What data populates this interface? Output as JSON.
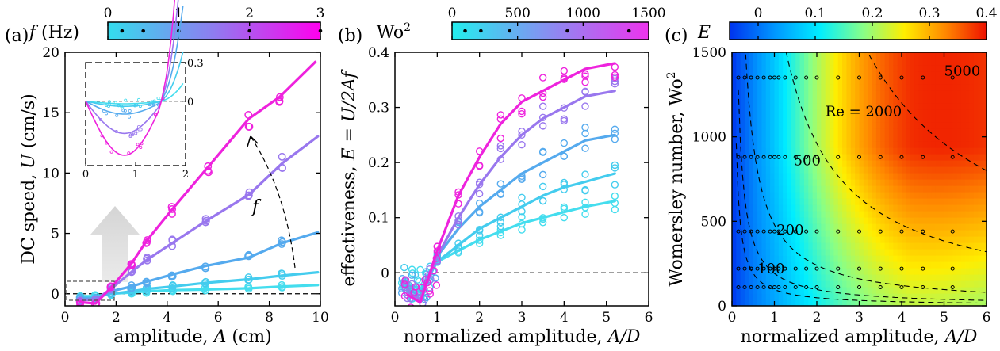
{
  "chart_data": [
    {
      "panel_label": "(a)",
      "type": "scatter",
      "xlabel_main": "amplitude, ",
      "xlabel_var": "A",
      "xlabel_unit": " (cm)",
      "ylabel_main": "DC speed, ",
      "ylabel_var": "U",
      "ylabel_unit": " (cm/s)",
      "xlim": [
        0,
        10
      ],
      "ylim": [
        -1,
        20
      ],
      "xticks": [
        "0",
        "2",
        "4",
        "6",
        "8",
        "10"
      ],
      "yticks": [
        "0",
        "5",
        "10",
        "15",
        "20"
      ],
      "colorbar": {
        "label_var": "f",
        "label_unit": " (Hz)",
        "range": [
          0,
          3
        ],
        "ticks": [
          "0",
          "1",
          "2",
          "3"
        ],
        "dots": [
          0.2,
          0.5,
          1.0,
          2.0,
          3.0
        ],
        "colors": [
          "#33ddee",
          "#ff00ee"
        ]
      },
      "series": [
        {
          "f": 0.2,
          "color": "#44ddee",
          "points": [
            [
              0.6,
              -0.2
            ],
            [
              1.2,
              -0.2
            ],
            [
              1.8,
              0
            ],
            [
              2.6,
              0.1
            ],
            [
              3.2,
              0.2
            ],
            [
              4.2,
              0.3
            ],
            [
              5.5,
              0.35
            ],
            [
              7.2,
              0.45
            ],
            [
              8.5,
              0.6
            ]
          ]
        },
        {
          "f": 0.5,
          "color": "#44ccee",
          "points": [
            [
              0.6,
              -0.3
            ],
            [
              1.2,
              -0.3
            ],
            [
              1.8,
              0
            ],
            [
              2.6,
              0.2
            ],
            [
              3.2,
              0.4
            ],
            [
              4.2,
              0.6
            ],
            [
              5.5,
              0.9
            ],
            [
              7.2,
              1.2
            ],
            [
              8.5,
              1.5
            ]
          ]
        },
        {
          "f": 1.0,
          "color": "#55aaee",
          "points": [
            [
              0.6,
              -0.4
            ],
            [
              1.2,
              -0.4
            ],
            [
              1.8,
              0.2
            ],
            [
              2.6,
              0.6
            ],
            [
              3.2,
              1.0
            ],
            [
              4.2,
              1.6
            ],
            [
              5.5,
              2.3
            ],
            [
              7.2,
              3.0
            ],
            [
              8.5,
              4.2
            ]
          ]
        },
        {
          "f": 2.0,
          "color": "#9977ee",
          "points": [
            [
              0.6,
              -0.5
            ],
            [
              1.2,
              -0.5
            ],
            [
              1.8,
              0.4
            ],
            [
              2.6,
              1.8
            ],
            [
              3.2,
              2.8
            ],
            [
              4.2,
              4.2
            ],
            [
              5.5,
              6.0
            ],
            [
              7.2,
              8.2
            ],
            [
              8.5,
              10.8
            ]
          ]
        },
        {
          "f": 3.0,
          "color": "#ee22dd",
          "points": [
            [
              0.6,
              -0.7
            ],
            [
              1.2,
              -0.8
            ],
            [
              1.8,
              0.5
            ],
            [
              2.6,
              2.5
            ],
            [
              3.2,
              4.4
            ],
            [
              4.2,
              7.0
            ],
            [
              5.6,
              10.5
            ],
            [
              7.2,
              14.5
            ],
            [
              8.4,
              16.3
            ]
          ]
        }
      ],
      "inset": {
        "xlim": [
          0,
          2
        ],
        "ylim": [
          -0.5,
          0.3
        ],
        "xticks": [
          "0",
          "1",
          "2"
        ],
        "yticks": [
          "0",
          "0.3"
        ]
      },
      "annotation_var": "f"
    },
    {
      "panel_label": "(b)",
      "type": "scatter",
      "xlabel_main": "normalized amplitude, ",
      "xlabel_var": "A/D",
      "ylabel_main": "effectiveness, ",
      "ylabel_var": "E = U/2Af",
      "xlim": [
        0,
        6
      ],
      "ylim": [
        -0.06,
        0.4
      ],
      "xticks": [
        "0",
        "1",
        "2",
        "3",
        "4",
        "5",
        "6"
      ],
      "yticks": [
        "0",
        "0.1",
        "0.2",
        "0.3",
        "0.4"
      ],
      "colorbar": {
        "label_main": "Wo",
        "label_sup": "2",
        "range": [
          0,
          1500
        ],
        "ticks": [
          "0",
          "500",
          "1000",
          "1500"
        ],
        "dots": [
          100,
          220,
          440,
          880,
          1350
        ],
        "colors": [
          "#22eeee",
          "#ee33ee"
        ]
      },
      "series": [
        {
          "Wo2": 100,
          "color": "#44ddee",
          "points": [
            [
              0.5,
              -0.01
            ],
            [
              1,
              0.02
            ],
            [
              1.5,
              0.04
            ],
            [
              2,
              0.06
            ],
            [
              2.5,
              0.075
            ],
            [
              3,
              0.09
            ],
            [
              3.5,
              0.1
            ],
            [
              4,
              0.11
            ],
            [
              4.5,
              0.12
            ],
            [
              5.2,
              0.13
            ]
          ]
        },
        {
          "Wo2": 220,
          "color": "#44ccee",
          "points": [
            [
              0.5,
              -0.01
            ],
            [
              1,
              0.02
            ],
            [
              1.5,
              0.05
            ],
            [
              2,
              0.08
            ],
            [
              2.5,
              0.1
            ],
            [
              3,
              0.12
            ],
            [
              3.5,
              0.14
            ],
            [
              4,
              0.155
            ],
            [
              4.5,
              0.165
            ],
            [
              5.2,
              0.18
            ]
          ]
        },
        {
          "Wo2": 440,
          "color": "#55aaee",
          "points": [
            [
              0.5,
              -0.02
            ],
            [
              1,
              0.03
            ],
            [
              1.5,
              0.08
            ],
            [
              2,
              0.12
            ],
            [
              2.5,
              0.15
            ],
            [
              3,
              0.18
            ],
            [
              3.5,
              0.2
            ],
            [
              4,
              0.22
            ],
            [
              4.5,
              0.24
            ],
            [
              5.2,
              0.25
            ]
          ]
        },
        {
          "Wo2": 880,
          "color": "#9977ee",
          "points": [
            [
              0.5,
              -0.03
            ],
            [
              1,
              0.03
            ],
            [
              1.5,
              0.1
            ],
            [
              2,
              0.16
            ],
            [
              2.5,
              0.21
            ],
            [
              3,
              0.25
            ],
            [
              3.5,
              0.28
            ],
            [
              4,
              0.3
            ],
            [
              4.5,
              0.32
            ],
            [
              5.2,
              0.33
            ]
          ]
        },
        {
          "Wo2": 1350,
          "color": "#ee22dd",
          "points": [
            [
              0.5,
              -0.04
            ],
            [
              1,
              0.04
            ],
            [
              1.5,
              0.14
            ],
            [
              2,
              0.21
            ],
            [
              2.5,
              0.27
            ],
            [
              3,
              0.31
            ],
            [
              3.5,
              0.33
            ],
            [
              4,
              0.35
            ],
            [
              4.5,
              0.37
            ],
            [
              5.2,
              0.38
            ]
          ]
        }
      ]
    },
    {
      "panel_label": "(c)",
      "type": "heatmap",
      "xlabel_main": "normalized amplitude, ",
      "xlabel_var": "A/D",
      "ylabel_main": "Womersley number, Wo",
      "ylabel_sup": "2",
      "xlim": [
        0,
        6
      ],
      "ylim": [
        0,
        1500
      ],
      "xticks": [
        "0",
        "1",
        "2",
        "3",
        "4",
        "5",
        "6"
      ],
      "yticks": [
        "0",
        "500",
        "1000",
        "1500"
      ],
      "colorbar": {
        "label_var": "E",
        "range": [
          -0.05,
          0.4
        ],
        "ticks": [
          "0",
          "0.1",
          "0.2",
          "0.3",
          "0.4"
        ],
        "colors": [
          "#0033ee",
          "#0099ff",
          "#00eeff",
          "#88ff88",
          "#ffee00",
          "#ff8800",
          "#ee1100"
        ]
      },
      "contours": [
        {
          "Re": 100,
          "label": "100"
        },
        {
          "Re": 200,
          "label": "200"
        },
        {
          "Re": 500,
          "label": "500"
        },
        {
          "Re": 2000,
          "label": "Re = 2000"
        },
        {
          "Re": 5000,
          "label": "5000"
        }
      ],
      "sample_x": [
        0.15,
        0.3,
        0.45,
        0.6,
        0.75,
        0.9,
        1.0,
        1.1,
        1.25,
        1.5,
        1.75,
        2.0,
        2.5,
        3.0,
        3.5,
        4.0,
        4.5,
        5.2
      ],
      "sample_wo2": [
        110,
        220,
        440,
        880,
        1350
      ]
    }
  ]
}
